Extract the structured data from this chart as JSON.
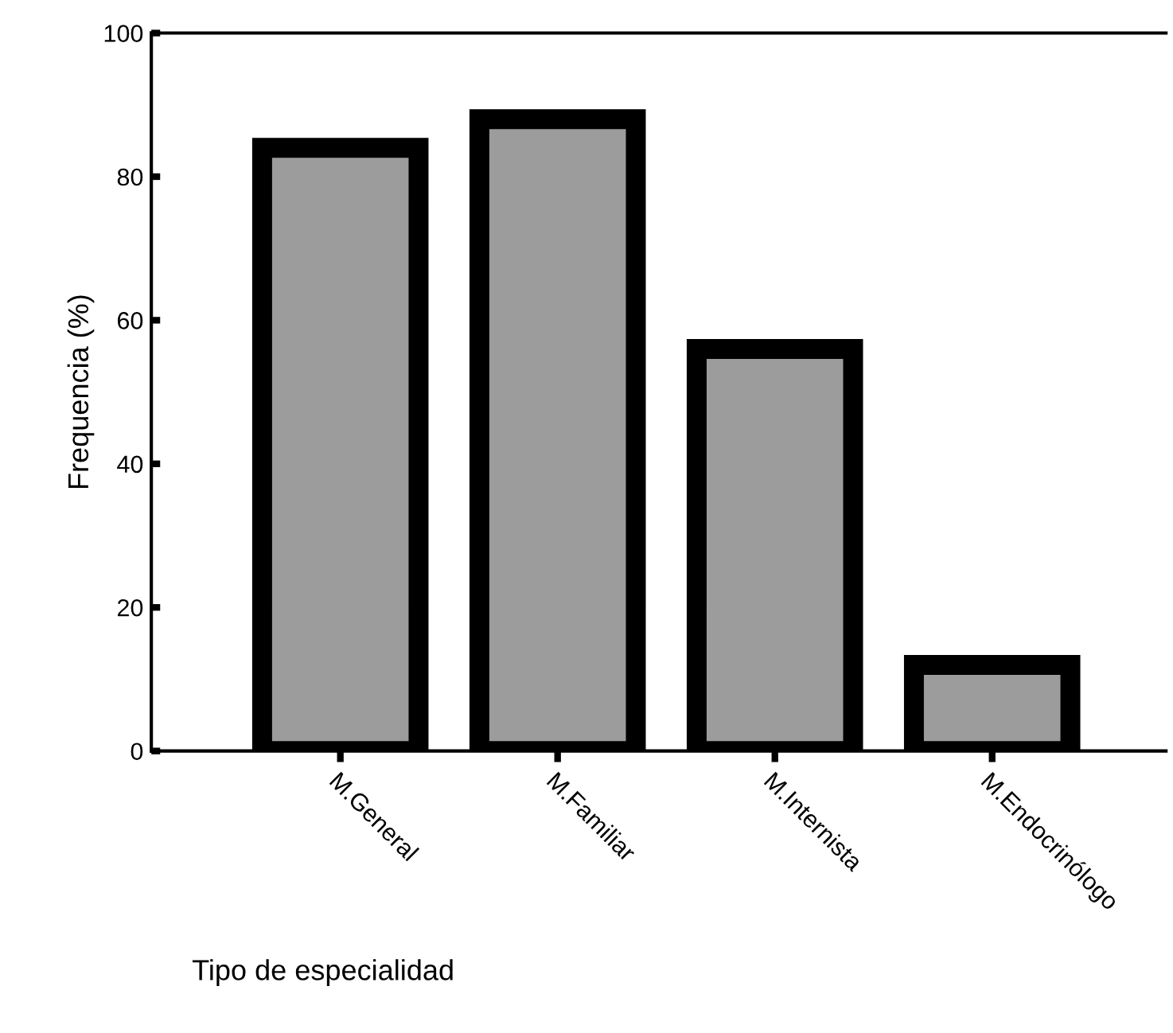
{
  "chart_data": {
    "type": "bar",
    "xlabel": "Tipo de especialidad",
    "ylabel": "Frequencia (%)",
    "categories": [
      "M.General",
      "M.Familiar",
      "M.Internista",
      "M.Endocrinólogo"
    ],
    "values": [
      84,
      88,
      56,
      12
    ],
    "color": "#9c9c9c",
    "ylim": [
      0,
      100
    ],
    "yticks": [
      0,
      20,
      40,
      60,
      80,
      100
    ],
    "grid": false,
    "legend": false
  }
}
